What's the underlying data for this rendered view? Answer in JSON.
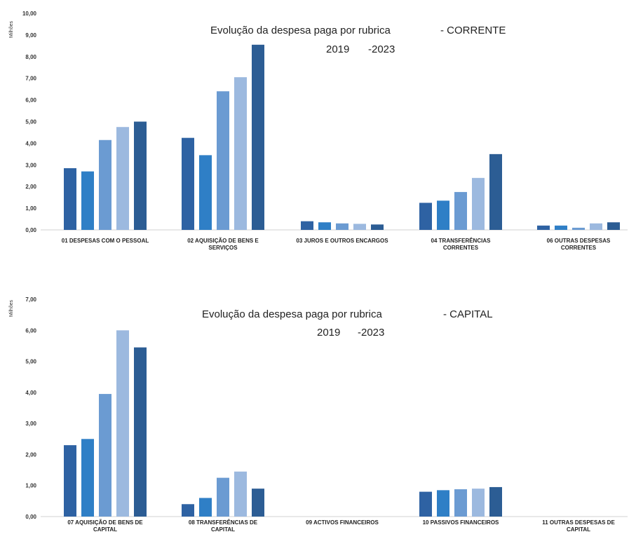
{
  "chart_data": [
    {
      "type": "bar",
      "title_line1": "Evolução da despesa paga por rubrica",
      "title_suffix": "- CORRENTE",
      "title_line2_a": "2019",
      "title_line2_b": "-2023",
      "ylabel": "Milhões",
      "ylim": [
        0,
        10
      ],
      "yticks": [
        "0,00",
        "1,00",
        "2,00",
        "3,00",
        "4,00",
        "5,00",
        "6,00",
        "7,00",
        "8,00",
        "9,00",
        "10,00"
      ],
      "grid": false,
      "categories": [
        [
          "01  DESPESAS COM O PESSOAL"
        ],
        [
          "02  AQUISIÇÃO DE BENS E",
          "SERVIÇOS"
        ],
        [
          "03  JUROS E OUTROS ENCARGOS"
        ],
        [
          "04  TRANSFERÊNCIAS",
          "CORRENTES"
        ],
        [
          "06  OUTRAS DESPESAS",
          "CORRENTES"
        ]
      ],
      "series": [
        {
          "values": [
            2.85,
            4.25,
            0.4,
            1.25,
            0.2
          ]
        },
        {
          "values": [
            2.7,
            3.45,
            0.35,
            1.35,
            0.2
          ]
        },
        {
          "values": [
            4.15,
            6.4,
            0.3,
            1.75,
            0.1
          ]
        },
        {
          "values": [
            4.75,
            7.05,
            0.28,
            2.4,
            0.3
          ]
        },
        {
          "values": [
            5.0,
            8.55,
            0.25,
            3.5,
            0.35
          ]
        }
      ]
    },
    {
      "type": "bar",
      "title_line1": "Evolução da despesa paga por rubrica",
      "title_suffix": "- CAPITAL",
      "title_line2_a": "2019",
      "title_line2_b": "-2023",
      "ylabel": "Milhões",
      "ylim": [
        0,
        7
      ],
      "yticks": [
        "0,00",
        "1,00",
        "2,00",
        "3,00",
        "4,00",
        "5,00",
        "6,00",
        "7,00"
      ],
      "grid": false,
      "categories": [
        [
          "07  AQUISIÇÃO DE BENS DE",
          "CAPITAL"
        ],
        [
          "08  TRANSFERÊNCIAS DE",
          "CAPITAL"
        ],
        [
          "09  ACTIVOS FINANCEIROS"
        ],
        [
          "10  PASSIVOS FINANCEIROS"
        ],
        [
          "11  OUTRAS DESPESAS DE",
          "CAPITAL"
        ]
      ],
      "series": [
        {
          "values": [
            2.3,
            0.4,
            0,
            0.8,
            0
          ]
        },
        {
          "values": [
            2.5,
            0.6,
            0,
            0.85,
            0
          ]
        },
        {
          "values": [
            3.95,
            1.25,
            0,
            0.88,
            0
          ]
        },
        {
          "values": [
            6.0,
            1.45,
            0,
            0.9,
            0
          ]
        },
        {
          "values": [
            5.45,
            0.9,
            0,
            0.95,
            0
          ]
        }
      ]
    }
  ],
  "colors": [
    "#2e62a3",
    "#2f7fc6",
    "#6b9bd2",
    "#9cb9df",
    "#2c5d94"
  ]
}
